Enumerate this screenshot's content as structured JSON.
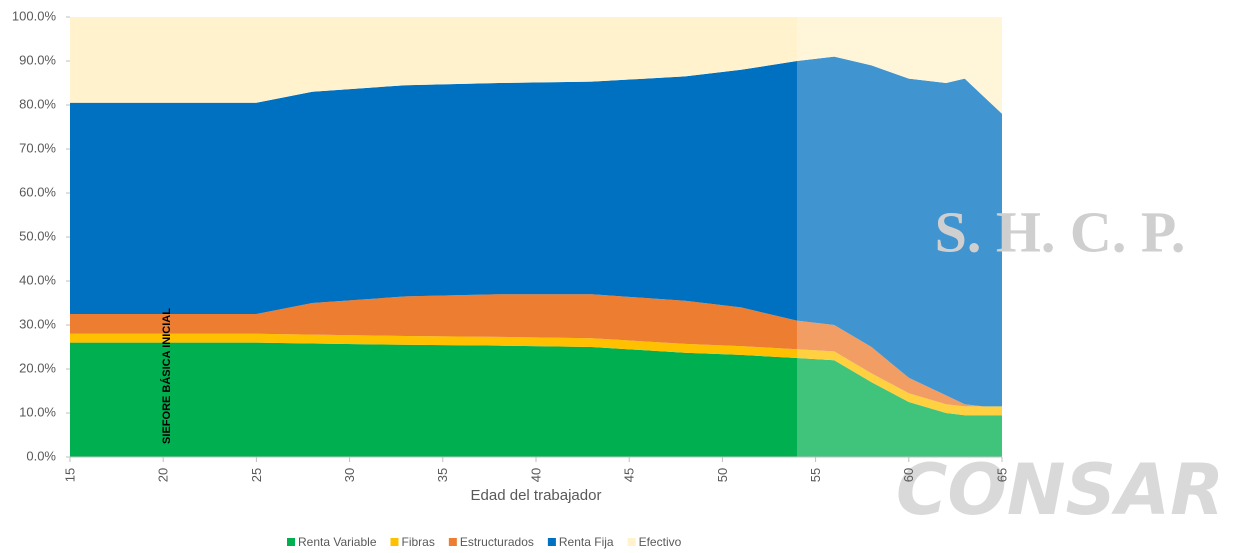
{
  "chart_data": {
    "type": "stacked-area",
    "x_label": "Edad del trabajador",
    "annotation": "SIEFORE BÁSICA INICIAL",
    "watermarks": [
      "S. H. C. P.",
      "CONSAR"
    ],
    "x": [
      15,
      25,
      28,
      33,
      38,
      43,
      48,
      51,
      54,
      56,
      58,
      60,
      62,
      63,
      64,
      65
    ],
    "series": [
      {
        "name": "Renta Variable",
        "color": "#00b050",
        "values": [
          26,
          26,
          25.8,
          25.5,
          25.3,
          25,
          23.7,
          23.2,
          22.5,
          22,
          17,
          12.5,
          10,
          9.5,
          9.5,
          9.5
        ]
      },
      {
        "name": "Fibras",
        "color": "#ffc000",
        "values": [
          2,
          2,
          2,
          2,
          2,
          2,
          2,
          2,
          2,
          2,
          2,
          2,
          2,
          2,
          2,
          2
        ]
      },
      {
        "name": "Estructurados",
        "color": "#ed7d31",
        "values": [
          4.5,
          4.5,
          7.2,
          9,
          9.7,
          10,
          9.8,
          8.8,
          6.5,
          6,
          6,
          3.5,
          2,
          0.5,
          0,
          0
        ]
      },
      {
        "name": "Renta Fija",
        "color": "#0070c0",
        "values": [
          48,
          48,
          48,
          48,
          48,
          48.3,
          51,
          54,
          59,
          61,
          64,
          68,
          71,
          74,
          70.5,
          66.5
        ]
      },
      {
        "name": "Efectivo",
        "color": "#fff2cc",
        "values": [
          19.5,
          19.5,
          17,
          15.5,
          15,
          14.7,
          13.5,
          12,
          10,
          9,
          11,
          14,
          15,
          14,
          18,
          22
        ]
      }
    ],
    "xlim": [
      15,
      65
    ],
    "xticks": [
      15,
      20,
      25,
      30,
      35,
      40,
      45,
      50,
      55,
      60,
      65
    ],
    "ylim": [
      0,
      100
    ],
    "yticks": [
      {
        "value": 0,
        "label": "0.0%"
      },
      {
        "value": 10,
        "label": "10.0%"
      },
      {
        "value": 20,
        "label": "20.0%"
      },
      {
        "value": 30,
        "label": "30.0%"
      },
      {
        "value": 40,
        "label": "40.0%"
      },
      {
        "value": 50,
        "label": "50.0%"
      },
      {
        "value": 60,
        "label": "60.0%"
      },
      {
        "value": 70,
        "label": "70.0%"
      },
      {
        "value": 80,
        "label": "80.0%"
      },
      {
        "value": 90,
        "label": "90.0%"
      },
      {
        "value": 100,
        "label": "100.0%"
      }
    ],
    "legend": "bottom"
  }
}
